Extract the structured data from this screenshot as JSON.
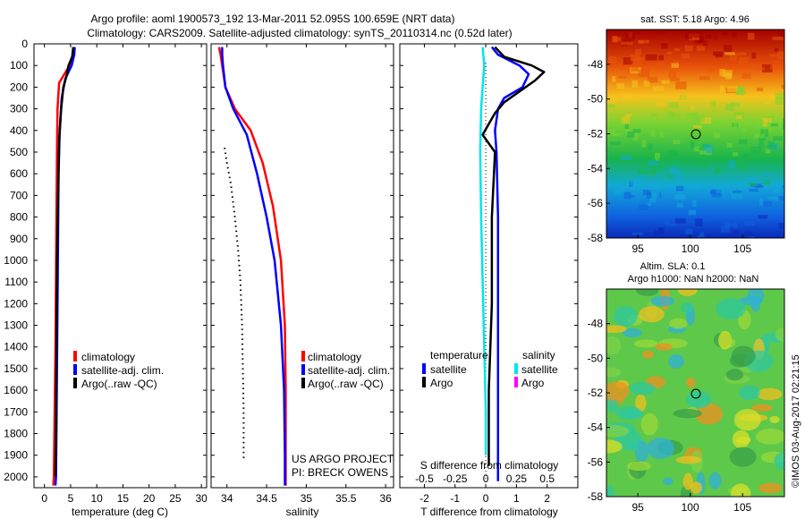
{
  "header": {
    "title_line1": "Argo profile: aoml 1900573_192 13-Mar-2011 52.095S 100.659E (NRT data)",
    "title_line2": "Climatology: CARS2009. Satellite-adjusted climatology: synTS_20110314.nc (0.52d later)"
  },
  "side_stamp": "©IMOS 03-Aug-2017 02:21:15",
  "chart_data": [
    {
      "id": "temperature-panel",
      "type": "line",
      "xlabel": "temperature (deg C)",
      "xlim": [
        -2,
        31
      ],
      "xticks": [
        0,
        5,
        10,
        15,
        20,
        25,
        30
      ],
      "ylim": [
        2050,
        0
      ],
      "yticks": [
        0,
        100,
        200,
        300,
        400,
        500,
        600,
        700,
        800,
        900,
        1000,
        1100,
        1200,
        1300,
        1400,
        1500,
        1600,
        1700,
        1800,
        1900,
        2000
      ],
      "legend": [
        "climatology",
        "satellite-adj. clim.",
        "Argo(..raw -QC)"
      ],
      "series": [
        {
          "name": "climatology",
          "color": "#ff0000",
          "x": [
            5.6,
            5.5,
            4.8,
            2.8,
            2.5,
            2.4,
            2.3,
            2.2,
            2.1,
            2.0,
            1.9,
            1.8,
            1.7
          ],
          "y": [
            15,
            50,
            100,
            180,
            300,
            500,
            800,
            1100,
            1400,
            1600,
            1800,
            2000,
            2040
          ]
        },
        {
          "name": "satellite-adj. clim.",
          "color": "#0000ff",
          "x": [
            5.8,
            5.7,
            5.2,
            4.0,
            3.3,
            2.9,
            2.7,
            2.6,
            2.5,
            2.4,
            2.3,
            2.2,
            2.1
          ],
          "y": [
            15,
            50,
            100,
            160,
            250,
            400,
            600,
            900,
            1200,
            1500,
            1800,
            2000,
            2040
          ]
        },
        {
          "name": "Argo(..raw -QC)",
          "color": "#000000",
          "x": [
            5.5,
            5.3,
            4.6,
            4.2,
            3.6,
            3.2,
            2.8,
            2.6,
            2.4,
            2.3,
            2.2,
            2.1
          ],
          "y": [
            15,
            60,
            100,
            150,
            200,
            300,
            450,
            700,
            1000,
            1400,
            1800,
            2000
          ]
        }
      ]
    },
    {
      "id": "salinity-panel",
      "type": "line",
      "xlabel": "salinity",
      "xlim": [
        33.8,
        36.1
      ],
      "xticks": [
        34,
        34.5,
        35,
        35.5,
        36
      ],
      "ylim": [
        2050,
        0
      ],
      "legend": [
        "climatology",
        "satellite-adj. clim.",
        "Argo(..raw -QC)"
      ],
      "annotation": [
        "US ARGO PROJECT",
        "PI: BRECK OWENS"
      ],
      "series": [
        {
          "name": "climatology",
          "color": "#ff0000",
          "x": [
            33.9,
            33.92,
            33.94,
            33.98,
            34.1,
            34.3,
            34.45,
            34.58,
            34.68,
            34.73,
            34.74,
            34.74,
            34.74
          ],
          "y": [
            15,
            50,
            100,
            200,
            300,
            400,
            550,
            750,
            1000,
            1300,
            1600,
            1900,
            2040
          ]
        },
        {
          "name": "satellite-adj. clim.",
          "color": "#0000ff",
          "x": [
            33.94,
            33.94,
            33.95,
            33.98,
            34.08,
            34.25,
            34.38,
            34.5,
            34.6,
            34.68,
            34.72,
            34.73,
            34.73
          ],
          "y": [
            15,
            50,
            100,
            200,
            300,
            420,
            600,
            800,
            1000,
            1300,
            1600,
            1900,
            2040
          ]
        },
        {
          "name": "Argo(..raw -QC)",
          "color": "#000000",
          "dotted": true,
          "x": [
            33.97,
            34.0,
            34.05,
            34.1,
            34.14,
            34.17,
            34.19,
            34.2,
            34.21,
            34.21
          ],
          "y": [
            480,
            550,
            650,
            800,
            950,
            1100,
            1300,
            1500,
            1700,
            1920
          ]
        }
      ]
    },
    {
      "id": "difference-panel",
      "type": "line",
      "xlabel": "T difference from climatology",
      "xlabel_top": "S difference from climatology",
      "xlim": [
        -2.8,
        3.0
      ],
      "xticks": [
        -2,
        -1,
        0,
        1,
        2
      ],
      "s_ticks": [
        -0.5,
        -0.25,
        0,
        0.25,
        0.5
      ],
      "ylim": [
        2050,
        0
      ],
      "legend_temperature_title": "temperature",
      "legend_salinity_title": "salinity",
      "legend": [
        {
          "group": "temperature",
          "name": "satellite",
          "color": "#0000ff"
        },
        {
          "group": "temperature",
          "name": "Argo",
          "color": "#000000"
        },
        {
          "group": "salinity",
          "name": "satellite",
          "color": "#00e5ee"
        },
        {
          "group": "salinity",
          "name": "Argo",
          "color": "#ff00ff"
        }
      ],
      "series": [
        {
          "name": "temperature satellite",
          "color": "#0000ff",
          "x": [
            0.2,
            0.4,
            1.1,
            1.4,
            1.2,
            0.6,
            0.4,
            0.3,
            0.35,
            0.4,
            0.4,
            0.4,
            0.4,
            0.4
          ],
          "y": [
            15,
            50,
            100,
            140,
            200,
            250,
            300,
            400,
            500,
            800,
            1200,
            1600,
            1900,
            2020
          ]
        },
        {
          "name": "temperature Argo",
          "color": "#000000",
          "x": [
            0.3,
            0.6,
            1.5,
            1.9,
            1.6,
            1.1,
            0.6,
            0.3,
            -0.1,
            0.3,
            0.2,
            0.2,
            0.1,
            0.1
          ],
          "y": [
            15,
            60,
            100,
            130,
            170,
            220,
            270,
            320,
            420,
            500,
            800,
            1200,
            1600,
            1950
          ]
        },
        {
          "name": "salinity satellite",
          "color": "#00e5ee",
          "x": [
            -0.1,
            -0.05,
            -0.1,
            -0.15,
            -0.18,
            -0.15,
            -0.1,
            -0.05,
            0.0,
            0.0
          ],
          "y": [
            15,
            100,
            200,
            300,
            500,
            800,
            1100,
            1400,
            1700,
            1900
          ]
        }
      ]
    },
    {
      "id": "sst-map",
      "type": "heatmap",
      "title": "sat. SST: 5.18 Argo: 4.96",
      "xticks": [
        95,
        100,
        105
      ],
      "yticks": [
        -48,
        -50,
        -52,
        -54,
        -56,
        -58
      ],
      "xlim": [
        92,
        109
      ],
      "ylim": [
        -58,
        -46
      ],
      "marker": {
        "lon": 100.659,
        "lat": -52.095
      }
    },
    {
      "id": "sla-map",
      "type": "heatmap",
      "title_line1": "Altim. SLA: 0.1",
      "title_line2": "Argo h1000: NaN h2000: NaN",
      "xticks": [
        95,
        100,
        105
      ],
      "yticks": [
        -48,
        -50,
        -52,
        -54,
        -56,
        -58
      ],
      "xlim": [
        92,
        109
      ],
      "ylim": [
        -58,
        -46
      ],
      "marker": {
        "lon": 100.659,
        "lat": -52.095
      }
    }
  ]
}
